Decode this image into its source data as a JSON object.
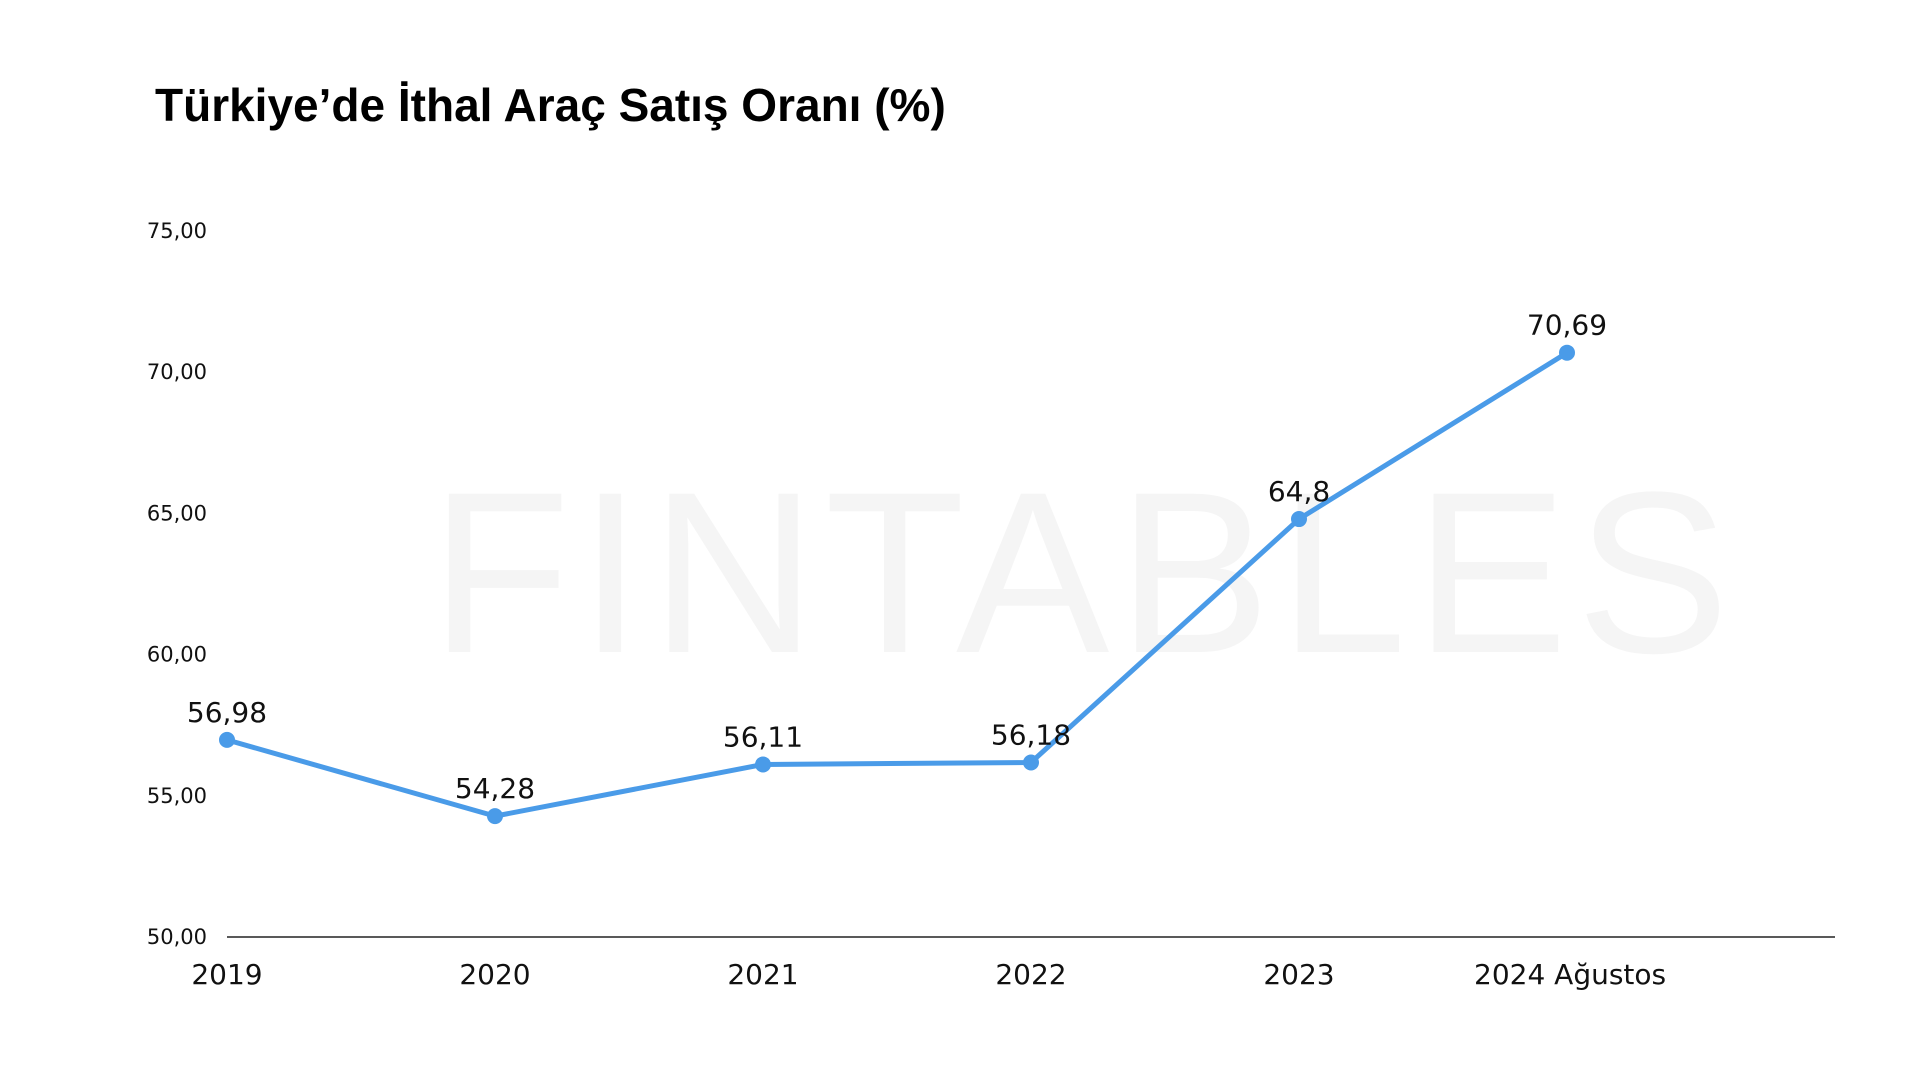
{
  "chart_data": {
    "type": "line",
    "title": "Türkiye’de İthal Araç Satış Oranı (%)",
    "watermark": "FINTABLES",
    "categories": [
      "2019",
      "2020",
      "2021",
      "2022",
      "2023",
      "2024 Ağustos"
    ],
    "series": [
      {
        "values": [
          56.98,
          54.28,
          56.11,
          56.18,
          64.8,
          70.69
        ],
        "labels": [
          "56,98",
          "54,28",
          "56,11",
          "56,18",
          "64,8",
          "70,69"
        ],
        "color": "#4a9be8"
      }
    ],
    "yticks": [
      {
        "value": 50,
        "label": "50,00"
      },
      {
        "value": 55,
        "label": "55,00"
      },
      {
        "value": 60,
        "label": "60,00"
      },
      {
        "value": 65,
        "label": "65,00"
      },
      {
        "value": 70,
        "label": "70,00"
      },
      {
        "value": 75,
        "label": "75,00"
      }
    ],
    "ylim": [
      50,
      75
    ],
    "grid": false,
    "legend": "none",
    "axis_color": "#222222"
  }
}
